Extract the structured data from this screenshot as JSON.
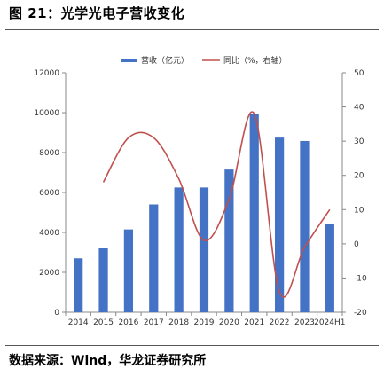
{
  "header": {
    "title": "图 21：光学光电子营收变化"
  },
  "footer": {
    "source": "数据来源：Wind，华龙证券研究所"
  },
  "colors": {
    "bar": "#4472c4",
    "line": "#c0504d",
    "axis": "#888888"
  },
  "chart_data": {
    "type": "bar",
    "categories": [
      "2014",
      "2015",
      "2016",
      "2017",
      "2018",
      "2019",
      "2020",
      "2021",
      "2022",
      "2023",
      "2024H1"
    ],
    "series": [
      {
        "name": "营收（亿元）",
        "type": "bar",
        "axis": "left",
        "values": [
          2700,
          3200,
          4150,
          5400,
          6250,
          6250,
          7150,
          9950,
          8750,
          8580,
          4400
        ]
      },
      {
        "name": "同比（%，右轴）",
        "type": "line",
        "axis": "right",
        "values": [
          null,
          18,
          31,
          31,
          19,
          1,
          13,
          38,
          -14,
          -1,
          10
        ]
      }
    ],
    "y_left": {
      "min": 0,
      "max": 12000,
      "ticks": [
        "0",
        "2000",
        "4000",
        "6000",
        "8000",
        "10000",
        "12000"
      ]
    },
    "y_right": {
      "min": -20,
      "max": 50,
      "ticks": [
        "-20",
        "-10",
        "0",
        "10",
        "20",
        "30",
        "40",
        "50"
      ]
    },
    "legend": {
      "position": "top"
    },
    "grid": false
  }
}
